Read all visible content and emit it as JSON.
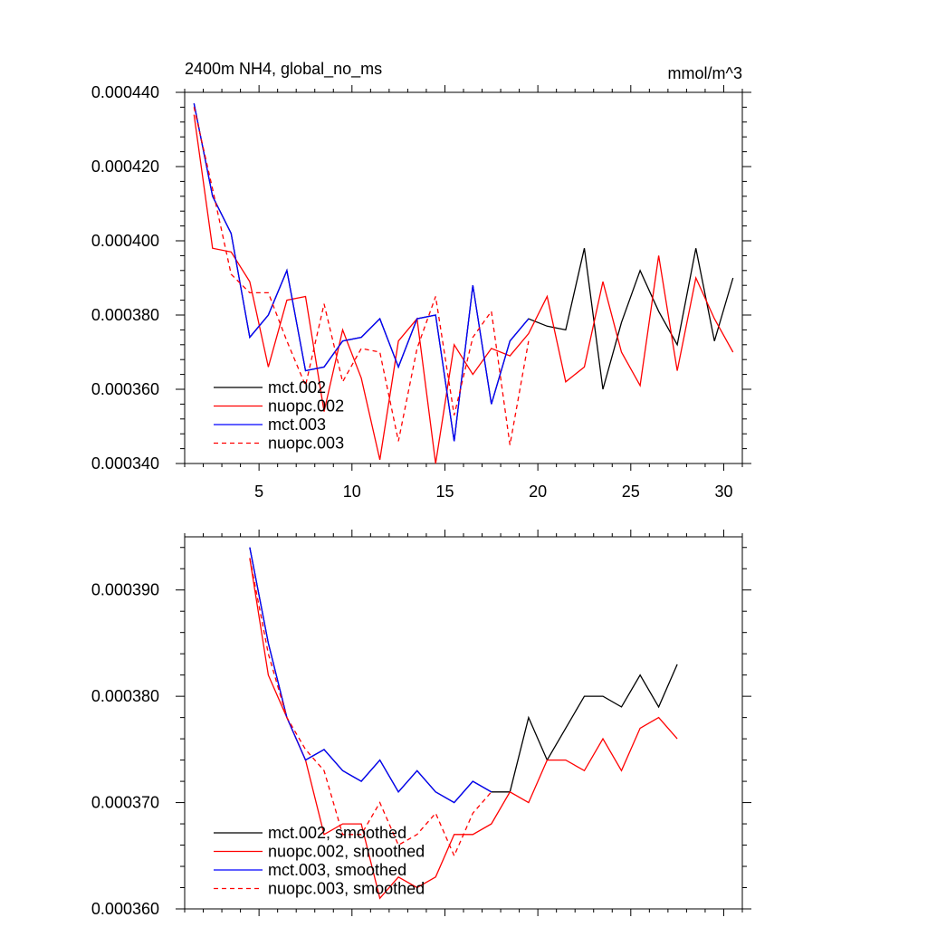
{
  "chart_data": [
    {
      "type": "line",
      "title_left": "2400m NH4, global_no_ms",
      "title_right": "mmol/m^3",
      "xlim": [
        1,
        31
      ],
      "ylim": [
        0.00034,
        0.00044
      ],
      "xticks": [
        5,
        10,
        15,
        20,
        25,
        30
      ],
      "yticks": [
        0.00034,
        0.00036,
        0.00038,
        0.0004,
        0.00042,
        0.00044
      ],
      "ytick_labels": [
        "0.000340",
        "0.000360",
        "0.000380",
        "0.000400",
        "0.000420",
        "0.000440"
      ],
      "x_start": 1.5,
      "series": [
        {
          "name": "mct.002",
          "color": "#000000",
          "dash": "",
          "values": [
            0.000437,
            0.000412,
            0.000402,
            0.000374,
            0.00038,
            0.000392,
            0.000365,
            0.000366,
            0.000373,
            0.000374,
            0.000379,
            0.000366,
            0.000379,
            0.00038,
            0.000346,
            0.000388,
            0.000356,
            0.000373,
            0.000379,
            0.000377,
            0.000376,
            0.000398,
            0.00036,
            0.000378,
            0.000392,
            0.000381,
            0.000372,
            0.000398,
            0.000373,
            0.00039
          ]
        },
        {
          "name": "nuopc.002",
          "color": "#ff0000",
          "dash": "",
          "values": [
            0.000434,
            0.000398,
            0.000397,
            0.000389,
            0.000366,
            0.000384,
            0.000385,
            0.000354,
            0.000376,
            0.000363,
            0.000341,
            0.000373,
            0.000379,
            0.00034,
            0.000372,
            0.000364,
            0.000371,
            0.000369,
            0.000375,
            0.000385,
            0.000362,
            0.000366,
            0.000389,
            0.00037,
            0.000361,
            0.000396,
            0.000365,
            0.00039,
            0.000379,
            0.00037
          ]
        },
        {
          "name": "mct.003",
          "color": "#0000ff",
          "dash": "",
          "values": [
            0.000437,
            0.000412,
            0.000402,
            0.000374,
            0.00038,
            0.000392,
            0.000365,
            0.000366,
            0.000373,
            0.000374,
            0.000379,
            0.000366,
            0.000379,
            0.00038,
            0.000346,
            0.000388,
            0.000356,
            0.000373,
            0.000379
          ]
        },
        {
          "name": "nuopc.003",
          "color": "#ff0000",
          "dash": "5,4",
          "values": [
            0.000436,
            0.000414,
            0.000391,
            0.000386,
            0.000386,
            0.000373,
            0.000361,
            0.000383,
            0.000362,
            0.000371,
            0.00037,
            0.000346,
            0.000371,
            0.000385,
            0.000353,
            0.000374,
            0.000381,
            0.000345,
            0.000373
          ]
        }
      ]
    },
    {
      "type": "line",
      "xlim": [
        1,
        31
      ],
      "ylim": [
        0.00036,
        0.000395
      ],
      "xticks": [
        5,
        10,
        15,
        20,
        25,
        30
      ],
      "yticks": [
        0.00036,
        0.00037,
        0.00038,
        0.00039
      ],
      "ytick_labels": [
        "0.000360",
        "0.000370",
        "0.000380",
        "0.000390"
      ],
      "x_start": 4.5,
      "series": [
        {
          "name": "mct.002, smoothed",
          "color": "#000000",
          "dash": "",
          "values": [
            0.000394,
            0.000385,
            0.000378,
            0.000374,
            0.000375,
            0.000373,
            0.000372,
            0.000374,
            0.000371,
            0.000373,
            0.000371,
            0.00037,
            0.000372,
            0.000371,
            0.000371,
            0.000378,
            0.000374,
            0.000377,
            0.00038,
            0.00038,
            0.000379,
            0.000382,
            0.000379,
            0.000383
          ]
        },
        {
          "name": "nuopc.002, smoothed",
          "color": "#ff0000",
          "dash": "",
          "values": [
            0.000393,
            0.000382,
            0.000378,
            0.000374,
            0.000367,
            0.000368,
            0.000368,
            0.000361,
            0.000363,
            0.000362,
            0.000363,
            0.000367,
            0.000367,
            0.000368,
            0.000371,
            0.00037,
            0.000374,
            0.000374,
            0.000373,
            0.000376,
            0.000373,
            0.000377,
            0.000378,
            0.000376
          ]
        },
        {
          "name": "mct.003, smoothed",
          "color": "#0000ff",
          "dash": "",
          "values": [
            0.000394,
            0.000385,
            0.000378,
            0.000374,
            0.000375,
            0.000373,
            0.000372,
            0.000374,
            0.000371,
            0.000373,
            0.000371,
            0.00037,
            0.000372,
            0.000371
          ]
        },
        {
          "name": "nuopc.003, smoothed",
          "color": "#ff0000",
          "dash": "5,4",
          "values": [
            0.000393,
            0.000384,
            0.000378,
            0.000375,
            0.000373,
            0.000367,
            0.000367,
            0.00037,
            0.000366,
            0.000367,
            0.000369,
            0.000365,
            0.000369,
            0.000371
          ]
        }
      ]
    }
  ]
}
